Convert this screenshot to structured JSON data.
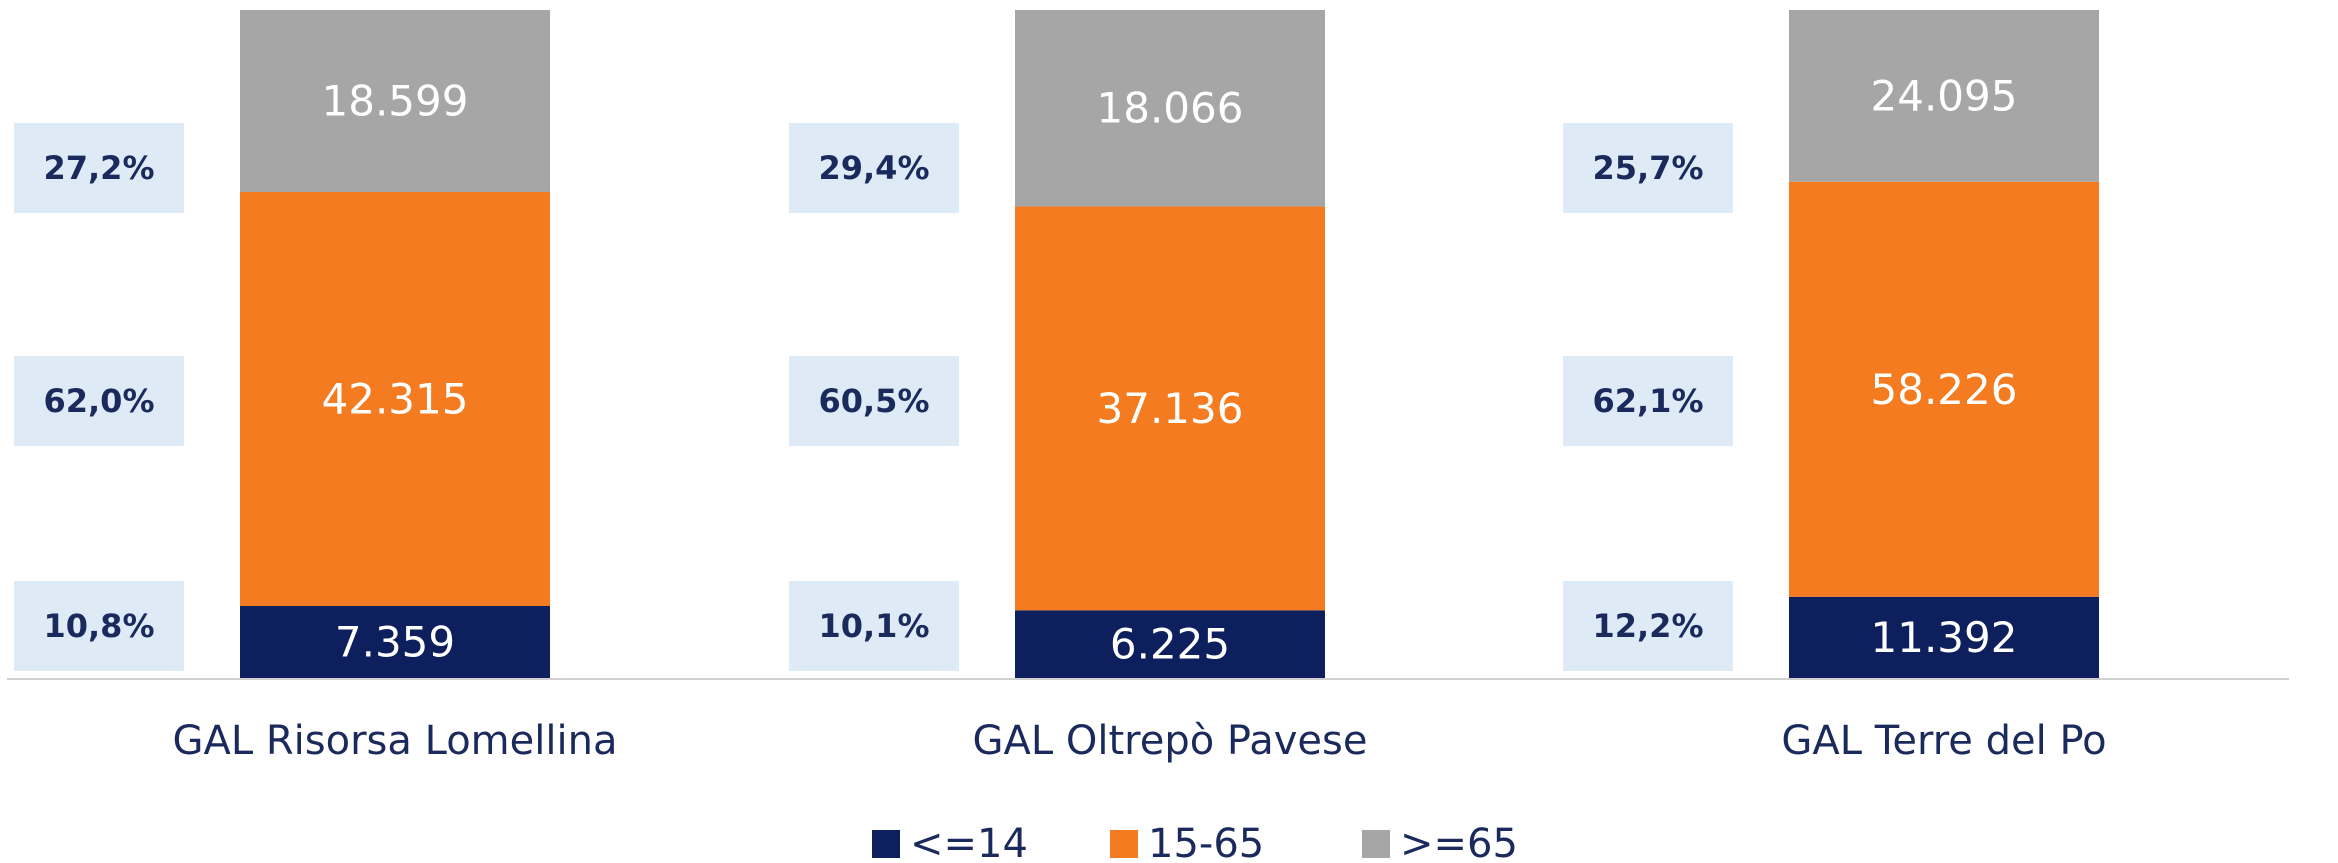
{
  "chart_data": {
    "type": "stacked_bar_100",
    "categories": [
      "GAL Risorsa Lomellina",
      "GAL Oltrepò Pavese",
      "GAL Terre del Po"
    ],
    "series": [
      {
        "name": "<=14",
        "color": "#0d1f5c",
        "values": [
          7359,
          6225,
          11392
        ],
        "value_labels": [
          "7.359",
          "6.225",
          "11.392"
        ],
        "shares": [
          10.8,
          10.1,
          12.2
        ],
        "share_labels": [
          "10,8%",
          "10,1%",
          "12,2%"
        ]
      },
      {
        "name": "15-65",
        "color": "#f47b20",
        "values": [
          42315,
          37136,
          58226
        ],
        "value_labels": [
          "42.315",
          "37.136",
          "58.226"
        ],
        "shares": [
          62.0,
          60.5,
          62.1
        ],
        "share_labels": [
          "62,0%",
          "60,5%",
          "62,1%"
        ]
      },
      {
        "name": ">=65",
        "color": "#a6a6a6",
        "values": [
          18599,
          18066,
          24095
        ],
        "value_labels": [
          "18.599",
          "18.066",
          "24.095"
        ],
        "shares": [
          27.2,
          29.4,
          25.7
        ],
        "share_labels": [
          "27,2%",
          "29,4%",
          "25,7%"
        ]
      }
    ],
    "legend": "bottom"
  }
}
